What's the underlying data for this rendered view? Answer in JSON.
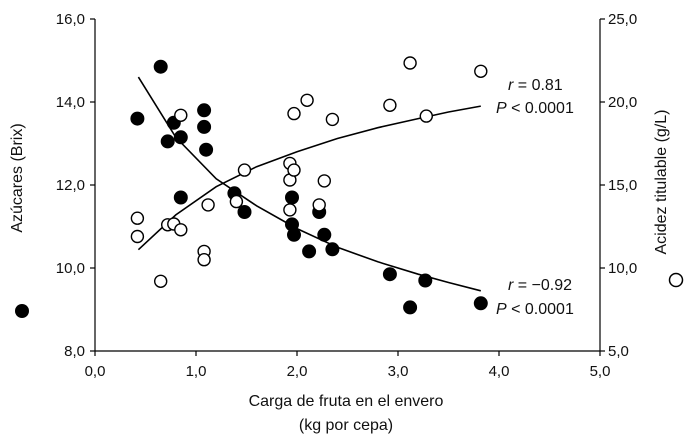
{
  "chart_data": {
    "type": "scatter",
    "xlabel": [
      "Carga de fruta en el envero",
      "(kg por cepa)"
    ],
    "ylabel_left": "Azúcares (Brix)",
    "ylabel_right": "Acidez titulable (g/L)",
    "xlim": [
      0,
      5
    ],
    "ylim_left": [
      8,
      16
    ],
    "ylim_right": [
      5,
      25
    ],
    "x_ticks": [
      "0,0",
      "1,0",
      "2,0",
      "3,0",
      "4,0",
      "5,0"
    ],
    "y_left_ticks": [
      "8,0",
      "10,0",
      "12,0",
      "14,0",
      "16,0"
    ],
    "y_right_ticks": [
      "5,0",
      "10,0",
      "15,0",
      "20,0",
      "25,0"
    ],
    "grid": false,
    "series": [
      {
        "marker": "filled-circle",
        "axis": "left",
        "color": "#000000",
        "points": [
          [
            0.42,
            13.6
          ],
          [
            0.65,
            14.85
          ],
          [
            0.72,
            13.05
          ],
          [
            0.78,
            13.5
          ],
          [
            0.85,
            13.15
          ],
          [
            0.85,
            11.7
          ],
          [
            1.08,
            13.8
          ],
          [
            1.08,
            13.4
          ],
          [
            1.1,
            12.85
          ],
          [
            1.38,
            11.8
          ],
          [
            1.48,
            11.35
          ],
          [
            1.95,
            11.7
          ],
          [
            1.95,
            11.05
          ],
          [
            1.97,
            10.8
          ],
          [
            2.12,
            10.4
          ],
          [
            2.22,
            11.35
          ],
          [
            2.27,
            10.8
          ],
          [
            2.35,
            10.45
          ],
          [
            2.92,
            9.85
          ],
          [
            3.12,
            9.05
          ],
          [
            3.27,
            9.7
          ],
          [
            3.82,
            9.15
          ]
        ],
        "fit": [
          [
            0.43,
            14.6
          ],
          [
            0.8,
            13.15
          ],
          [
            1.2,
            12.15
          ],
          [
            1.6,
            11.5
          ],
          [
            2.0,
            10.95
          ],
          [
            2.4,
            10.5
          ],
          [
            2.8,
            10.15
          ],
          [
            3.2,
            9.85
          ],
          [
            3.5,
            9.65
          ],
          [
            3.82,
            9.45
          ]
        ]
      },
      {
        "marker": "open-circle",
        "axis": "right",
        "color": "#000000",
        "points": [
          [
            0.42,
            13.0
          ],
          [
            0.42,
            11.9
          ],
          [
            0.65,
            9.2
          ],
          [
            0.72,
            12.6
          ],
          [
            0.78,
            12.65
          ],
          [
            0.85,
            19.2
          ],
          [
            0.85,
            12.3
          ],
          [
            1.08,
            11.0
          ],
          [
            1.08,
            10.5
          ],
          [
            1.12,
            13.8
          ],
          [
            1.4,
            14.0
          ],
          [
            1.48,
            15.9
          ],
          [
            1.93,
            16.3
          ],
          [
            1.93,
            15.3
          ],
          [
            1.93,
            13.5
          ],
          [
            1.97,
            15.9
          ],
          [
            1.97,
            19.3
          ],
          [
            2.1,
            20.1
          ],
          [
            2.22,
            13.8
          ],
          [
            2.27,
            15.25
          ],
          [
            2.35,
            18.95
          ],
          [
            2.92,
            19.8
          ],
          [
            3.12,
            22.35
          ],
          [
            3.28,
            19.15
          ],
          [
            3.82,
            21.85
          ]
        ],
        "fit": [
          [
            0.43,
            11.1
          ],
          [
            0.8,
            13.2
          ],
          [
            1.2,
            14.9
          ],
          [
            1.6,
            16.1
          ],
          [
            2.0,
            17.0
          ],
          [
            2.4,
            17.8
          ],
          [
            2.8,
            18.45
          ],
          [
            3.2,
            19.0
          ],
          [
            3.5,
            19.4
          ],
          [
            3.82,
            19.75
          ]
        ]
      }
    ],
    "annotations": {
      "open_series": {
        "r_var": "r",
        "r_value": " = 0.81",
        "p_var": "P",
        "p_value": " < 0.0001"
      },
      "filled_series": {
        "r_var": "r",
        "r_value": " = −0.92",
        "p_var": "P",
        "p_value": " < 0.0001"
      }
    }
  }
}
